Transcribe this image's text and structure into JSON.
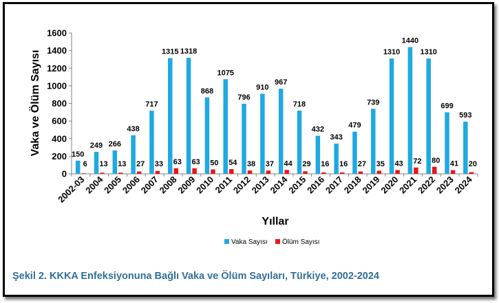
{
  "chart_data": {
    "type": "bar",
    "title": "",
    "xlabel": "Yıllar",
    "ylabel": "Vaka ve Ölüm Sayısı",
    "ylim": [
      0,
      1600
    ],
    "yticks": [
      0,
      200,
      400,
      600,
      800,
      1000,
      1200,
      1400,
      1600
    ],
    "grid": false,
    "legend": "bottom",
    "categories": [
      "2002-03",
      "2004",
      "2005",
      "2006",
      "2007",
      "2008",
      "2009",
      "2010",
      "2011",
      "2012",
      "2013",
      "2014",
      "2015",
      "2016",
      "2017",
      "2018",
      "2019",
      "2020",
      "2021",
      "2022",
      "2023",
      "2024"
    ],
    "series": [
      {
        "name": "Vaka Sayısı",
        "color": "#1fa9e1",
        "values": [
          150,
          249,
          266,
          438,
          717,
          1315,
          1318,
          868,
          1075,
          796,
          910,
          967,
          718,
          432,
          343,
          479,
          739,
          1310,
          1440,
          1310,
          699,
          593
        ]
      },
      {
        "name": "Ölüm Sayısı",
        "color": "#e8161b",
        "values": [
          6,
          13,
          13,
          27,
          33,
          63,
          63,
          50,
          54,
          38,
          37,
          44,
          29,
          16,
          16,
          27,
          35,
          43,
          72,
          80,
          41,
          20
        ]
      }
    ]
  },
  "caption": "Şekil 2. KKKA Enfeksiyonuna Bağlı Vaka ve Ölüm Sayıları, Türkiye, 2002-2024"
}
